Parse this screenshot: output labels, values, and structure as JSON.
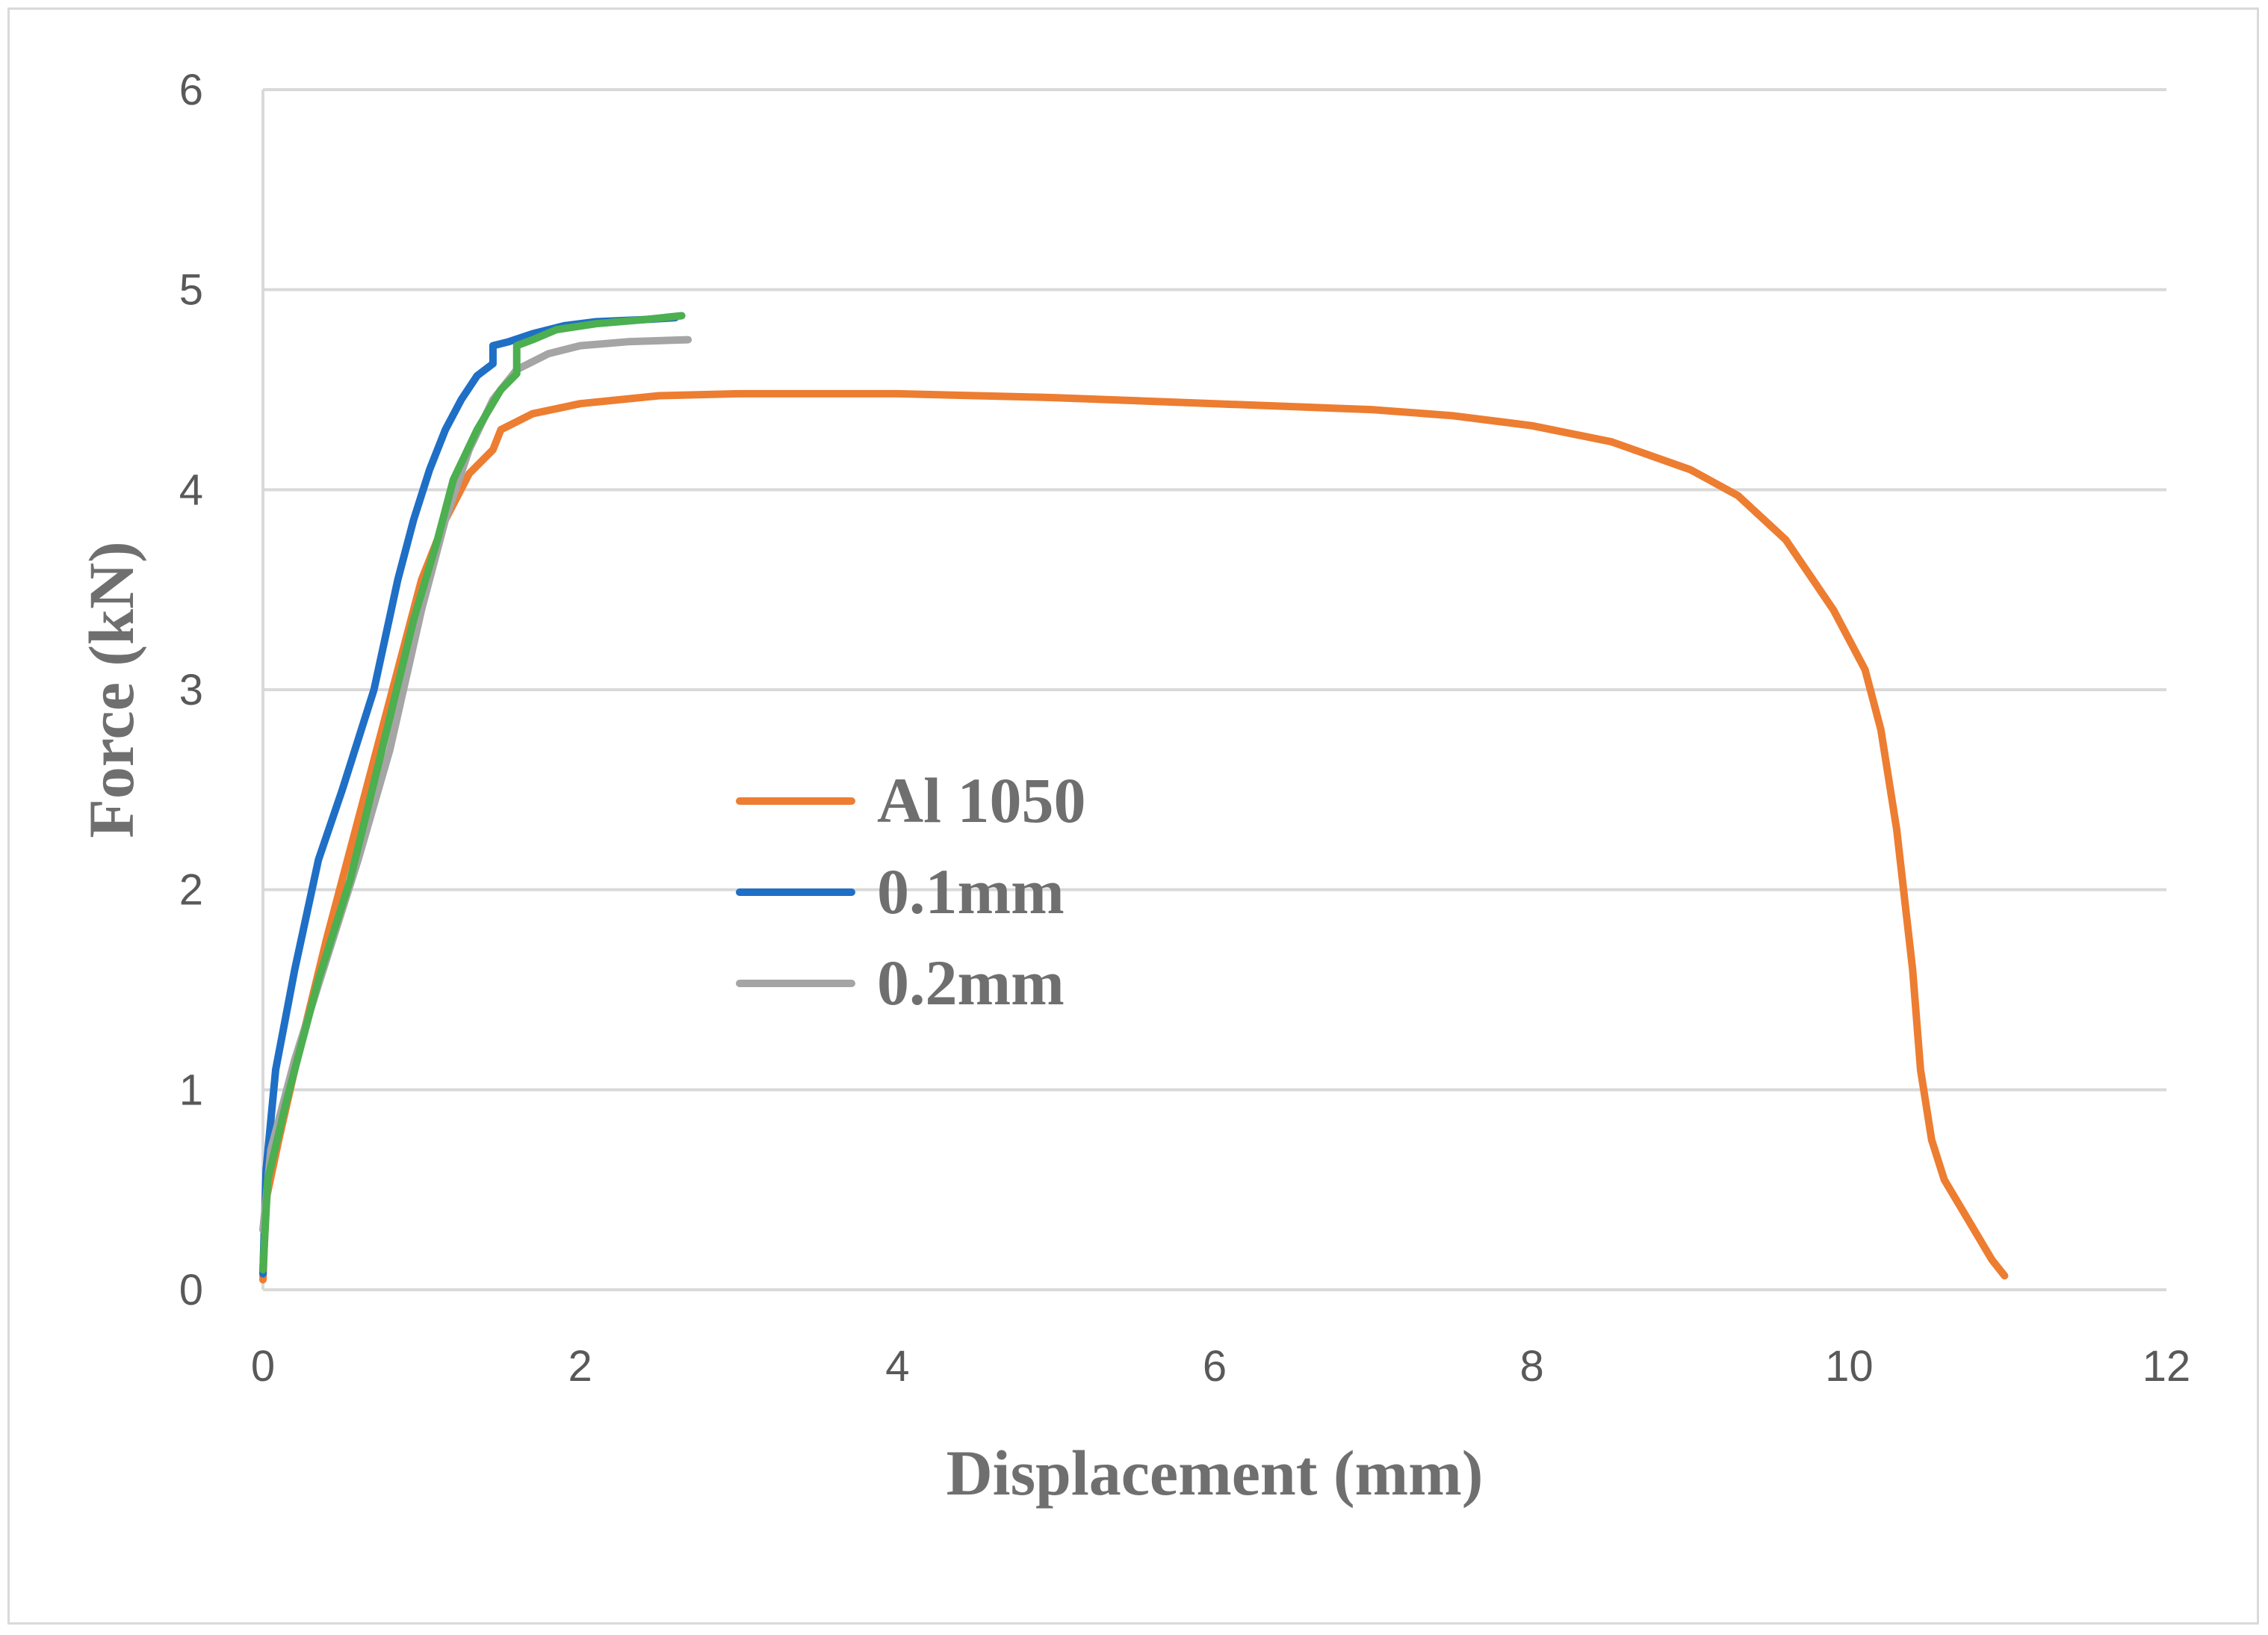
{
  "chart_data": {
    "type": "line",
    "title": "",
    "xlabel": "Displacement (mm)",
    "ylabel": "Force (kN)",
    "xlim": [
      0,
      12
    ],
    "ylim": [
      0,
      6
    ],
    "x_ticks": [
      "0",
      "2",
      "4",
      "6",
      "8",
      "10",
      "12"
    ],
    "y_ticks": [
      "0",
      "1",
      "2",
      "3",
      "4",
      "5",
      "6"
    ],
    "grid": "horizontal",
    "legend_position": "center-left",
    "series": [
      {
        "name": "Al 1050",
        "color": "#ED7D31",
        "points": [
          [
            0,
            0.05
          ],
          [
            0.02,
            0.45
          ],
          [
            0.1,
            0.75
          ],
          [
            0.2,
            1.1
          ],
          [
            0.4,
            1.75
          ],
          [
            0.6,
            2.35
          ],
          [
            0.8,
            2.95
          ],
          [
            1.0,
            3.55
          ],
          [
            1.15,
            3.85
          ],
          [
            1.3,
            4.08
          ],
          [
            1.45,
            4.2
          ],
          [
            1.5,
            4.3
          ],
          [
            1.7,
            4.38
          ],
          [
            2.0,
            4.43
          ],
          [
            2.5,
            4.47
          ],
          [
            3.0,
            4.48
          ],
          [
            4.0,
            4.48
          ],
          [
            5.0,
            4.46
          ],
          [
            6.0,
            4.43
          ],
          [
            7.0,
            4.4
          ],
          [
            7.5,
            4.37
          ],
          [
            8.0,
            4.32
          ],
          [
            8.5,
            4.24
          ],
          [
            9.0,
            4.1
          ],
          [
            9.3,
            3.97
          ],
          [
            9.6,
            3.75
          ],
          [
            9.9,
            3.4
          ],
          [
            10.1,
            3.1
          ],
          [
            10.2,
            2.8
          ],
          [
            10.3,
            2.3
          ],
          [
            10.4,
            1.6
          ],
          [
            10.45,
            1.1
          ],
          [
            10.52,
            0.75
          ],
          [
            10.6,
            0.55
          ],
          [
            10.75,
            0.35
          ],
          [
            10.9,
            0.15
          ],
          [
            10.98,
            0.07
          ]
        ]
      },
      {
        "name": "0.1mm",
        "color": "#1F6FC6",
        "points": [
          [
            0,
            0.08
          ],
          [
            0.02,
            0.6
          ],
          [
            0.08,
            1.1
          ],
          [
            0.2,
            1.6
          ],
          [
            0.35,
            2.15
          ],
          [
            0.5,
            2.5
          ],
          [
            0.7,
            3.0
          ],
          [
            0.85,
            3.55
          ],
          [
            0.95,
            3.85
          ],
          [
            1.05,
            4.1
          ],
          [
            1.15,
            4.3
          ],
          [
            1.25,
            4.45
          ],
          [
            1.35,
            4.57
          ],
          [
            1.45,
            4.63
          ],
          [
            1.45,
            4.72
          ],
          [
            1.55,
            4.74
          ],
          [
            1.7,
            4.78
          ],
          [
            1.9,
            4.82
          ],
          [
            2.1,
            4.84
          ],
          [
            2.4,
            4.85
          ],
          [
            2.6,
            4.86
          ]
        ]
      },
      {
        "name": "0.2mm",
        "color": "#A5A5A5",
        "points": [
          [
            0,
            0.3
          ],
          [
            0.05,
            0.7
          ],
          [
            0.2,
            1.15
          ],
          [
            0.4,
            1.65
          ],
          [
            0.6,
            2.15
          ],
          [
            0.8,
            2.7
          ],
          [
            1.0,
            3.4
          ],
          [
            1.15,
            3.85
          ],
          [
            1.3,
            4.2
          ],
          [
            1.45,
            4.45
          ],
          [
            1.6,
            4.6
          ],
          [
            1.8,
            4.68
          ],
          [
            2.0,
            4.72
          ],
          [
            2.3,
            4.74
          ],
          [
            2.68,
            4.75
          ]
        ]
      },
      {
        "name": "",
        "color": "#4CAF50",
        "points": [
          [
            0,
            0.1
          ],
          [
            0.03,
            0.55
          ],
          [
            0.15,
            0.95
          ],
          [
            0.35,
            1.55
          ],
          [
            0.55,
            2.05
          ],
          [
            0.75,
            2.7
          ],
          [
            0.95,
            3.35
          ],
          [
            1.1,
            3.75
          ],
          [
            1.2,
            4.05
          ],
          [
            1.35,
            4.3
          ],
          [
            1.5,
            4.5
          ],
          [
            1.6,
            4.58
          ],
          [
            1.6,
            4.72
          ],
          [
            1.7,
            4.75
          ],
          [
            1.85,
            4.8
          ],
          [
            2.1,
            4.83
          ],
          [
            2.4,
            4.85
          ],
          [
            2.64,
            4.87
          ]
        ]
      }
    ],
    "legend": [
      "Al 1050",
      "0.1mm",
      "0.2mm"
    ]
  }
}
